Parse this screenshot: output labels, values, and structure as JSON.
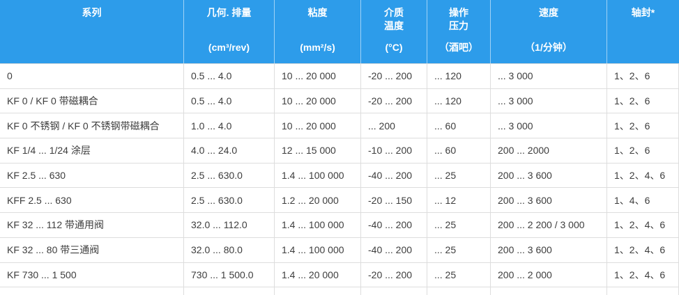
{
  "table": {
    "colors": {
      "header_bg": "#2d9cea",
      "header_text": "#ffffff",
      "body_text": "#3d3d3d",
      "border": "#dddddd"
    },
    "columns": [
      {
        "name": "系列",
        "unit": ""
      },
      {
        "name": "几何. 排量",
        "unit": "(cm³/rev)"
      },
      {
        "name": "粘度",
        "unit": "(mm²/s)"
      },
      {
        "name": "介质\n温度",
        "unit": "(°C)"
      },
      {
        "name": "操作\n压力",
        "unit": "（酒吧）"
      },
      {
        "name": "速度",
        "unit": "（1/分钟）"
      },
      {
        "name": "轴封*",
        "unit": ""
      }
    ],
    "rows": [
      {
        "cells": [
          "0",
          "0.5 ... 4.0",
          "10 ... 20 000",
          "-20 ... 200",
          "... 120",
          "... 3 000",
          "1、2、6"
        ]
      },
      {
        "cells": [
          "KF 0 / KF 0 带磁耦合",
          "0.5 ... 4.0",
          "10 ... 20 000",
          "-20 ... 200",
          "... 120",
          "... 3 000",
          "1、2、6"
        ]
      },
      {
        "cells": [
          "KF 0 不锈钢 / KF 0 不锈钢带磁耦合",
          "1.0 ... 4.0",
          "10 ... 20 000",
          "... 200",
          "... 60",
          "... 3 000",
          "1、2、6"
        ]
      },
      {
        "cells": [
          "KF 1/4 ... 1/24 涂层",
          "4.0 ... 24.0",
          "12 ... 15 000",
          "-10 ... 200",
          "... 60",
          "200 ... 2000",
          "1、2、6"
        ]
      },
      {
        "cells": [
          "KF 2.5 ... 630",
          "2.5 ... 630.0",
          "1.4 ... 100 000",
          "-40 ... 200",
          "... 25",
          "200 ... 3 600",
          "1、2、4、6"
        ]
      },
      {
        "cells": [
          "KFF 2.5 ... 630",
          "2.5 ... 630.0",
          "1.2 ... 20 000",
          "-20 ... 150",
          "... 12",
          "200 ... 3 600",
          "1、4、6"
        ]
      },
      {
        "cells": [
          "KF 32 ... 112 带通用阀",
          "32.0 ... 112.0",
          "1.4 ... 100 000",
          "-40 ... 200",
          "... 25",
          "200 ... 2 200 / 3 000",
          "1、2、4、6"
        ]
      },
      {
        "cells": [
          "KF 32 ... 80 带三通阀",
          "32.0 ... 80.0",
          "1.4 ... 100 000",
          "-40 ... 200",
          "... 25",
          "200 ... 3 600",
          "1、2、4、6"
        ]
      },
      {
        "cells": [
          "KF 730 ... 1 500",
          "730 ... 1 500.0",
          "1.4 ... 20 000",
          "-20 ... 200",
          "... 25",
          "200 ... 2 000",
          "1、2、4、6"
        ]
      }
    ]
  }
}
